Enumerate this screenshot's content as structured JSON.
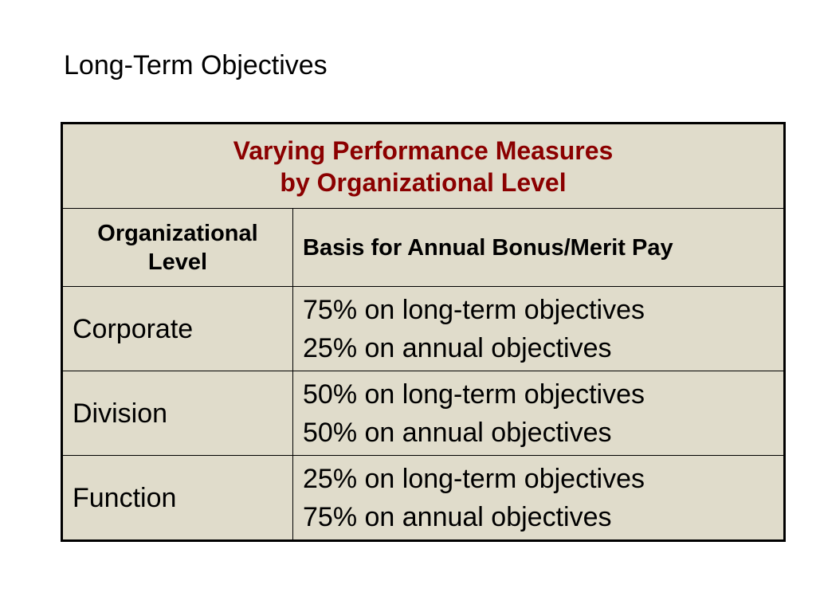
{
  "slide": {
    "title": "Long-Term Objectives"
  },
  "table": {
    "caption_line1": "Varying Performance Measures",
    "caption_line2": "by Organizational Level",
    "headers": {
      "level_line1": "Organizational",
      "level_line2": "Level",
      "basis": "Basis for Annual Bonus/Merit Pay"
    },
    "rows": [
      {
        "level": "Corporate",
        "basis_line1": "75% on long-term objectives",
        "basis_line2": "25% on annual objectives"
      },
      {
        "level": "Division",
        "basis_line1": "50% on long-term objectives",
        "basis_line2": "50% on annual objectives"
      },
      {
        "level": "Function",
        "basis_line1": "25% on long-term objectives",
        "basis_line2": "75% on annual objectives"
      }
    ]
  },
  "colors": {
    "caption": "#8b0000",
    "table_background": "#e0dccb",
    "border": "#000000"
  }
}
